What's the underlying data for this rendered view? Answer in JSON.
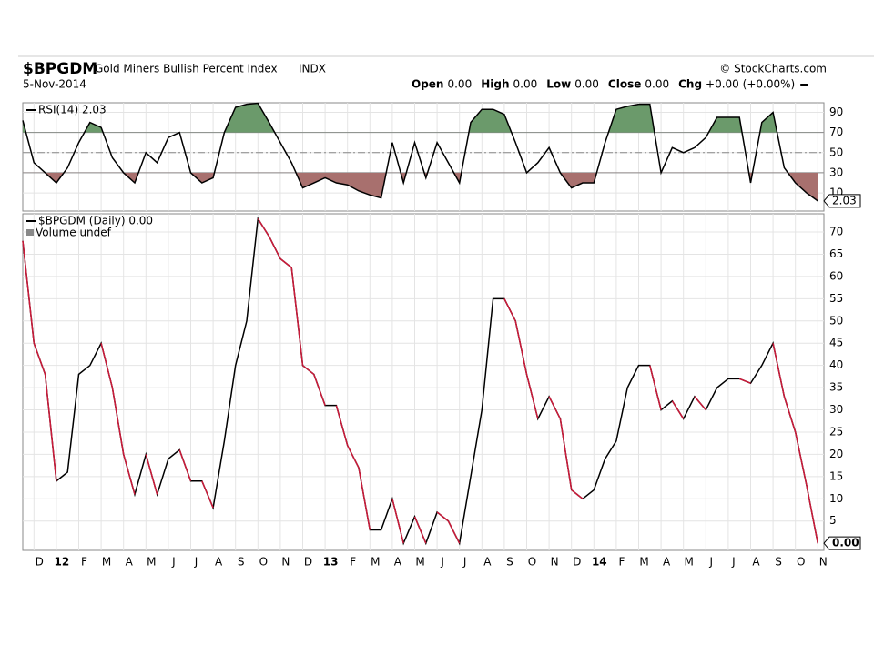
{
  "header": {
    "symbol": "$BPGDM",
    "name": "Gold Miners Bullish Percent Index",
    "exchange": "INDX",
    "credit": "© StockCharts.com",
    "date": "5-Nov-2014",
    "quotes": [
      {
        "label": "Open",
        "value": "0.00"
      },
      {
        "label": "High",
        "value": "0.00"
      },
      {
        "label": "Low",
        "value": "0.00"
      },
      {
        "label": "Close",
        "value": "0.00"
      },
      {
        "label": "Chg",
        "value": "+0.00 (+0.00%)"
      }
    ]
  },
  "chart_data": [
    {
      "type": "line",
      "series": [
        {
          "name": "RSI(14) 2.03",
          "color": "#000000",
          "values": [
            82,
            40,
            30,
            20,
            35,
            60,
            80,
            75,
            45,
            30,
            20,
            50,
            40,
            65,
            70,
            30,
            20,
            25,
            70,
            95,
            98,
            99,
            80,
            60,
            40,
            15,
            20,
            25,
            20,
            18,
            12,
            8,
            5,
            60,
            20,
            60,
            25,
            60,
            40,
            20,
            80,
            93,
            93,
            88,
            60,
            30,
            40,
            55,
            30,
            15,
            20,
            20,
            60,
            93,
            96,
            98,
            98,
            30,
            55,
            50,
            55,
            65,
            85,
            85,
            85,
            20,
            80,
            90,
            35,
            20,
            10,
            2.03
          ]
        }
      ],
      "ylim": [
        -8,
        99.5
      ],
      "yticks": [
        10,
        30,
        50,
        70,
        90
      ],
      "grid": true,
      "shade_above": 70,
      "shade_above_color": "#6b9a6b",
      "shade_below": 30,
      "shade_below_color": "#a8706e"
    },
    {
      "type": "line",
      "series": [
        {
          "name": "$BPGDM (Daily) 0.00",
          "color": "#000000",
          "down_color": "#cc1a3a",
          "values": [
            68,
            45,
            38,
            14,
            16,
            38,
            40,
            45,
            35,
            20,
            11,
            20,
            11,
            19,
            21,
            14,
            14,
            8,
            23,
            40,
            50,
            73,
            69,
            64,
            62,
            40,
            38,
            31,
            31,
            22,
            17,
            3,
            3,
            10,
            0,
            6,
            0,
            7,
            5,
            0,
            15,
            30,
            55,
            55,
            50,
            38,
            28,
            33,
            28,
            12,
            10,
            12,
            19,
            23,
            35,
            40,
            40,
            30,
            32,
            28,
            33,
            30,
            35,
            37,
            37,
            36,
            40,
            45,
            33,
            25,
            13,
            0
          ],
          "value_labels": [
            null,
            null,
            null,
            null,
            null,
            null,
            null,
            null,
            null,
            null,
            null,
            null,
            null,
            null,
            null,
            null,
            null,
            null,
            null,
            null,
            null,
            null,
            null,
            null,
            null,
            null,
            null,
            null,
            null,
            null,
            null,
            null,
            null,
            null,
            null,
            null,
            null,
            null,
            null,
            null,
            null,
            null,
            null,
            null,
            null,
            null,
            null,
            null,
            null,
            null,
            null,
            null,
            null,
            null,
            null,
            null,
            null,
            null,
            null,
            null,
            null,
            null,
            null,
            null,
            null,
            null,
            null,
            null,
            null,
            null,
            null,
            "0.00"
          ]
        }
      ],
      "legend_extra": "Volume undef",
      "categories": [
        null,
        "D",
        null,
        "12",
        null,
        "F",
        null,
        "M",
        null,
        "A",
        null,
        "M",
        null,
        "J",
        null,
        "J",
        null,
        "A",
        null,
        "S",
        null,
        "O",
        null,
        "N",
        null,
        "D",
        null,
        "13",
        null,
        "F",
        null,
        "M",
        null,
        "A",
        null,
        "M",
        null,
        "J",
        null,
        "J",
        null,
        "A",
        null,
        "S",
        null,
        "O",
        null,
        "N",
        null,
        "D",
        null,
        "14",
        null,
        "F",
        null,
        "M",
        null,
        "A",
        null,
        "M",
        null,
        "J",
        null,
        "J",
        null,
        "A",
        null,
        "S",
        null,
        "O",
        null,
        "N"
      ],
      "ylim": [
        -1.6,
        74.1
      ],
      "yticks": [
        5,
        10,
        15,
        20,
        25,
        30,
        35,
        40,
        45,
        50,
        55,
        60,
        65,
        70
      ],
      "grid": true
    }
  ]
}
